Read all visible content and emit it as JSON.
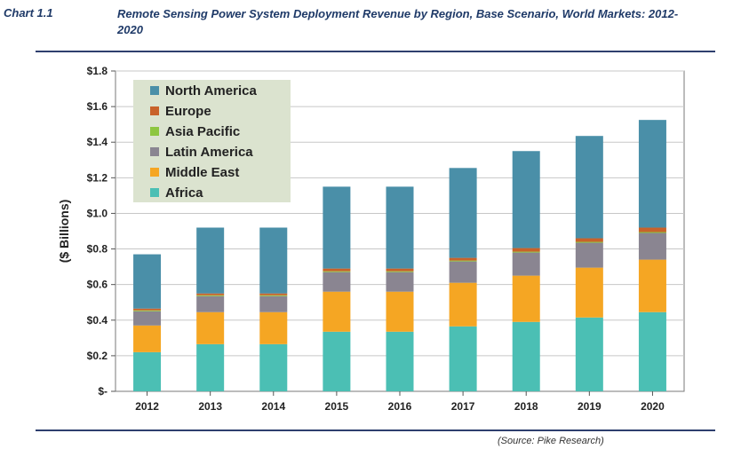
{
  "header": {
    "chart_number": "Chart 1.1",
    "title": "Remote Sensing Power System Deployment Revenue by Region, Base Scenario, World Markets: 2012-2020"
  },
  "source": "(Source: Pike Research)",
  "chart_data": {
    "type": "bar",
    "stacked": true,
    "title": "Remote Sensing Power System Deployment Revenue by Region, Base Scenario, World Markets: 2012-2020",
    "xlabel": "",
    "ylabel": "($ Billions)",
    "ylim": [
      0,
      1.8
    ],
    "yticks": [
      0,
      0.2,
      0.4,
      0.6,
      0.8,
      1.0,
      1.2,
      1.4,
      1.6,
      1.8
    ],
    "ytick_labels": [
      "$-",
      "$0.2",
      "$0.4",
      "$0.6",
      "$0.8",
      "$1.0",
      "$1.2",
      "$1.4",
      "$1.6",
      "$1.8"
    ],
    "grid": true,
    "legend_position": "top-left",
    "categories": [
      "2012",
      "2013",
      "2014",
      "2015",
      "2016",
      "2017",
      "2018",
      "2019",
      "2020"
    ],
    "series": [
      {
        "name": "Africa",
        "color": "#4bbfb4",
        "values": [
          0.22,
          0.265,
          0.265,
          0.335,
          0.335,
          0.365,
          0.39,
          0.415,
          0.445
        ]
      },
      {
        "name": "Middle East",
        "color": "#f5a623",
        "values": [
          0.15,
          0.18,
          0.18,
          0.225,
          0.225,
          0.245,
          0.26,
          0.28,
          0.295
        ]
      },
      {
        "name": "Latin America",
        "color": "#8a8591",
        "values": [
          0.08,
          0.09,
          0.09,
          0.11,
          0.11,
          0.12,
          0.13,
          0.14,
          0.15
        ]
      },
      {
        "name": "Asia Pacific",
        "color": "#8dc63f",
        "values": [
          0.005,
          0.005,
          0.005,
          0.005,
          0.005,
          0.005,
          0.005,
          0.005,
          0.005
        ]
      },
      {
        "name": "Europe",
        "color": "#c8622a",
        "values": [
          0.01,
          0.01,
          0.01,
          0.015,
          0.015,
          0.015,
          0.02,
          0.02,
          0.025
        ]
      },
      {
        "name": "North America",
        "color": "#4a8fa8",
        "values": [
          0.305,
          0.37,
          0.37,
          0.46,
          0.46,
          0.505,
          0.545,
          0.575,
          0.605
        ]
      }
    ],
    "legend_order": [
      "North America",
      "Europe",
      "Asia Pacific",
      "Latin America",
      "Middle East",
      "Africa"
    ]
  }
}
